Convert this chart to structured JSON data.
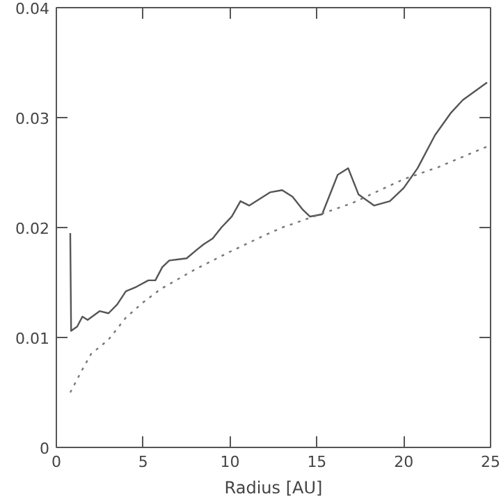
{
  "chart_data": {
    "type": "line",
    "xlabel": "Radius [AU]",
    "xlim": [
      0,
      25
    ],
    "ylim": [
      0,
      0.04
    ],
    "xticks": [
      0,
      5,
      10,
      15,
      20,
      25
    ],
    "yticks": [
      0,
      0.01,
      0.02,
      0.03,
      0.04
    ],
    "grid": false,
    "series": [
      {
        "color": "#555555",
        "line_style": "solid",
        "x": [
          0.8,
          0.85,
          1.2,
          1.5,
          1.8,
          2.5,
          3.0,
          3.5,
          4.0,
          4.6,
          5.3,
          5.7,
          6.1,
          6.5,
          7.5,
          8.1,
          8.5,
          9.0,
          9.5,
          10.1,
          10.6,
          11.1,
          11.7,
          12.3,
          13.0,
          13.6,
          14.2,
          14.6,
          15.3,
          16.2,
          16.8,
          17.4,
          18.3,
          19.2,
          20.0,
          20.8,
          21.8,
          22.7,
          23.4,
          24.8
        ],
        "values": [
          0.0195,
          0.0106,
          0.011,
          0.0119,
          0.0116,
          0.0124,
          0.0122,
          0.013,
          0.0142,
          0.0146,
          0.0152,
          0.0152,
          0.0164,
          0.017,
          0.0172,
          0.018,
          0.0185,
          0.019,
          0.02,
          0.021,
          0.0224,
          0.022,
          0.0226,
          0.0232,
          0.0234,
          0.0228,
          0.0216,
          0.021,
          0.0212,
          0.0248,
          0.0254,
          0.023,
          0.022,
          0.0224,
          0.0236,
          0.0254,
          0.0284,
          0.0304,
          0.0316,
          0.0332
        ]
      },
      {
        "color": "#777777",
        "line_style": "dotted",
        "x": [
          0.8,
          1.5,
          2,
          3,
          4,
          5,
          6,
          7,
          8,
          10,
          12,
          13,
          15,
          17,
          20,
          22,
          25
        ],
        "values": [
          0.005,
          0.0071,
          0.0085,
          0.0098,
          0.0118,
          0.0132,
          0.0144,
          0.0153,
          0.0162,
          0.0178,
          0.0193,
          0.02,
          0.0211,
          0.0222,
          0.0244,
          0.0255,
          0.0275
        ]
      }
    ]
  }
}
